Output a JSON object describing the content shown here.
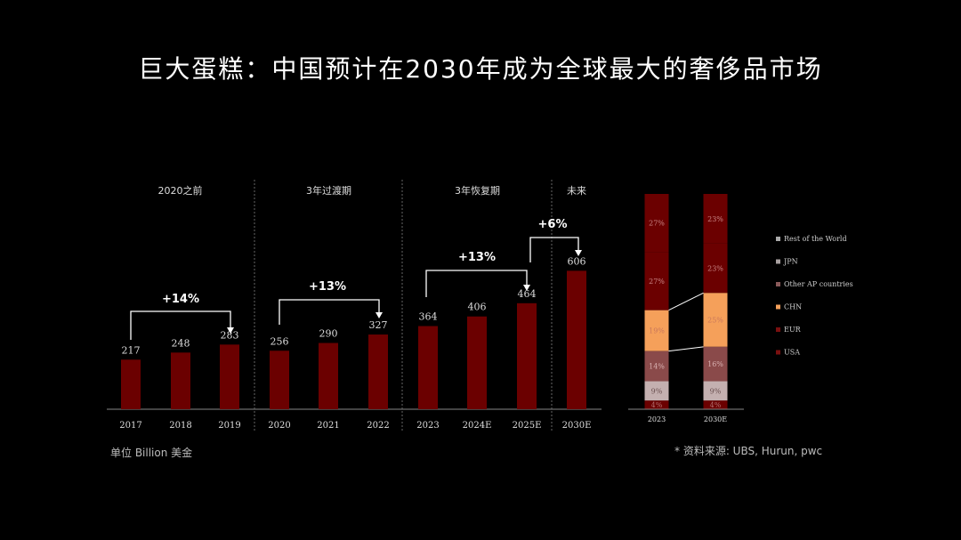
{
  "title": "巨大蛋糕：中国预计在2030年成为全球最大的奢侈品市场",
  "unit_note": "单位 Billion 美金",
  "source_note": "* 资料来源: UBS, Hurun, pwc",
  "colors": {
    "bar": "#6b0000",
    "background": "#000000",
    "arrow": "#ffffff",
    "stack": {
      "USA": "#6b0000",
      "EUR": "#6b0000",
      "CHN": "#f5a05a",
      "Other AP countries": "#8a4a4a",
      "JPN": "#c4b0b0",
      "Rest of the World": "#6b0000"
    }
  },
  "chart_data": [
    {
      "type": "bar",
      "categories": [
        "2017",
        "2018",
        "2019",
        "2020",
        "2021",
        "2022",
        "2023",
        "2024E",
        "2025E",
        "2030E"
      ],
      "values": [
        217,
        248,
        283,
        256,
        290,
        327,
        364,
        406,
        464,
        606
      ],
      "ylim": [
        0,
        620
      ],
      "phases": [
        {
          "label": "2020之前",
          "from": 0,
          "to": 2
        },
        {
          "label": "3年过渡期",
          "from": 3,
          "to": 5
        },
        {
          "label": "3年恢复期",
          "from": 6,
          "to": 8
        },
        {
          "label": "未来",
          "from": 9,
          "to": 9
        }
      ],
      "growth_annotations": [
        {
          "label": "+14%",
          "from": 0,
          "to": 2
        },
        {
          "label": "+13%",
          "from": 3,
          "to": 5
        },
        {
          "label": "+13%",
          "from": 6,
          "to": 8
        },
        {
          "label": "+6%",
          "from": 8,
          "to": 9
        }
      ]
    },
    {
      "type": "bar",
      "stacked": true,
      "percent": true,
      "categories": [
        "2023",
        "2030E"
      ],
      "series": [
        {
          "name": "USA",
          "values": [
            27,
            23
          ],
          "labels": [
            "27%",
            "23%"
          ]
        },
        {
          "name": "EUR",
          "values": [
            27,
            23
          ],
          "labels": [
            "27%",
            "23%"
          ]
        },
        {
          "name": "CHN",
          "values": [
            19,
            25
          ],
          "labels": [
            "19%",
            "25%"
          ]
        },
        {
          "name": "Other AP countries",
          "values": [
            14,
            16
          ],
          "labels": [
            "14%",
            "16%"
          ]
        },
        {
          "name": "JPN",
          "values": [
            9,
            9
          ],
          "labels": [
            "9%",
            "9%"
          ]
        },
        {
          "name": "Rest of the World",
          "values": [
            4,
            4
          ],
          "labels": [
            "4%",
            "4%"
          ]
        }
      ],
      "legend": [
        "Rest of the World",
        "JPN",
        "Other AP countries",
        "CHN",
        "EUR",
        "USA"
      ],
      "legend_position": "right"
    }
  ]
}
